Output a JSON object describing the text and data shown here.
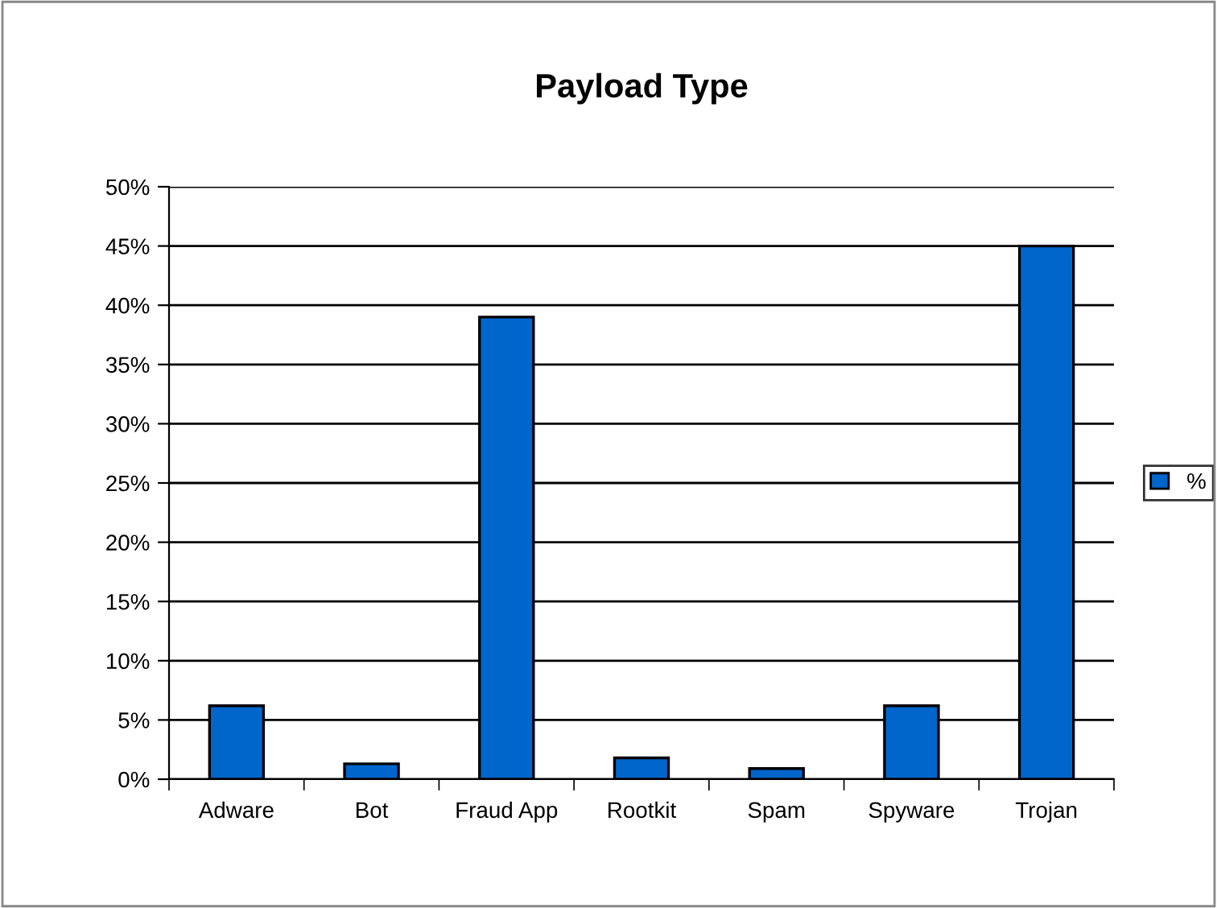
{
  "chart_data": {
    "type": "bar",
    "title": "Payload Type",
    "categories": [
      "Adware",
      "Bot",
      "Fraud App",
      "Rootkit",
      "Spam",
      "Spyware",
      "Trojan"
    ],
    "series": [
      {
        "name": "%",
        "color": "#0066cc",
        "values": [
          6.2,
          1.3,
          39.0,
          1.8,
          0.9,
          6.2,
          45.0
        ]
      }
    ],
    "ylim": [
      0,
      50
    ],
    "yticks": [
      {
        "value": 0,
        "label": "0%"
      },
      {
        "value": 5,
        "label": "5%"
      },
      {
        "value": 10,
        "label": "10%"
      },
      {
        "value": 15,
        "label": "15%"
      },
      {
        "value": 20,
        "label": "20%"
      },
      {
        "value": 25,
        "label": "25%"
      },
      {
        "value": 30,
        "label": "30%"
      },
      {
        "value": 35,
        "label": "35%"
      },
      {
        "value": 40,
        "label": "40%"
      },
      {
        "value": 45,
        "label": "45%"
      },
      {
        "value": 50,
        "label": "50%"
      }
    ],
    "grid": "y",
    "legend": "right"
  }
}
